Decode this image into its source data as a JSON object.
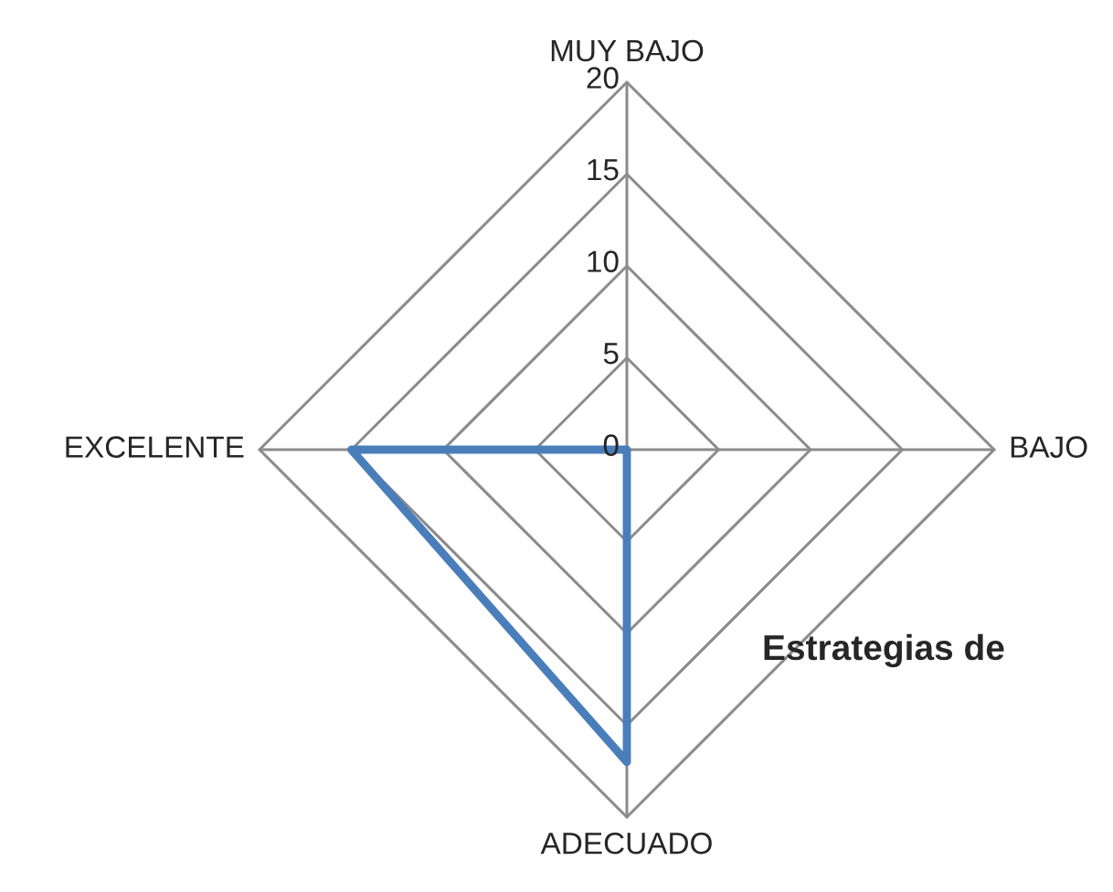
{
  "chart_data": {
    "type": "radar",
    "title": "Estrategias de",
    "categories": [
      "MUY BAJO",
      "BAJO",
      "ADECUADO",
      "EXCELENTE"
    ],
    "series": [
      {
        "color": "#4a7ebb",
        "values": [
          0,
          0,
          17,
          15
        ]
      }
    ],
    "ylim": [
      0,
      20
    ],
    "yticks": [
      0,
      5,
      10,
      15,
      20
    ],
    "grid": true,
    "marker": "none",
    "line_style": "solid"
  }
}
